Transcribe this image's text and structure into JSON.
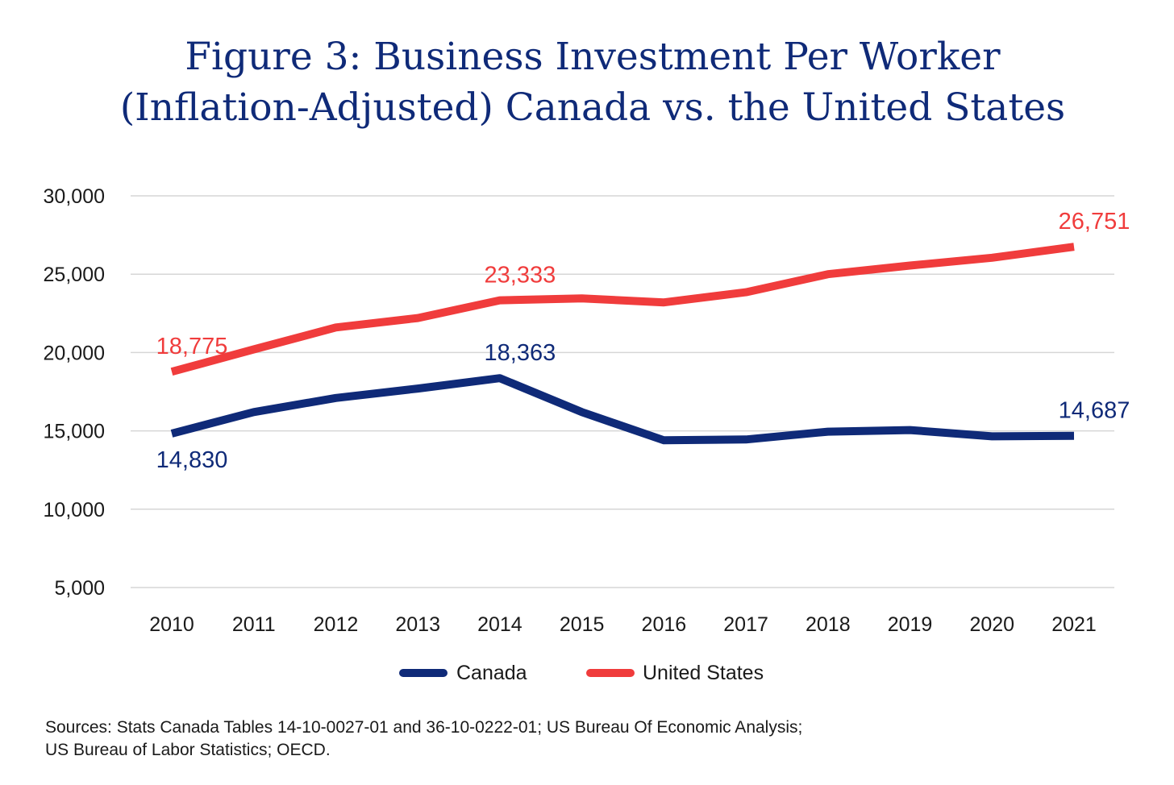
{
  "title_line1": "Figure 3: Business Investment Per Worker",
  "title_line2": "(Inflation-Adjusted) Canada vs. the United States",
  "sources_line1": "Sources: Stats Canada Tables 14-10-0027-01 and 36-10-0222-01; US Bureau Of Economic Analysis;",
  "sources_line2": "US Bureau of Labor Statistics; OECD.",
  "colors": {
    "canada": "#0f2a78",
    "united_states": "#f03c3c",
    "title": "#0f2a78",
    "grid": "#d6d6d6"
  },
  "chart_data": {
    "type": "line",
    "title": "Figure 3: Business Investment Per Worker (Inflation-Adjusted) Canada vs. the United States",
    "xlabel": "",
    "ylabel": "",
    "x": [
      "2010",
      "2011",
      "2012",
      "2013",
      "2014",
      "2015",
      "2016",
      "2017",
      "2018",
      "2019",
      "2020",
      "2021"
    ],
    "ylim": [
      5000,
      30000
    ],
    "yticks": [
      5000,
      10000,
      15000,
      20000,
      25000,
      30000
    ],
    "ytick_labels": [
      "5,000",
      "10,000",
      "15,000",
      "20,000",
      "25,000",
      "30,000"
    ],
    "grid": true,
    "legend_position": "bottom-center",
    "series": [
      {
        "name": "Canada",
        "color": "#0f2a78",
        "values": [
          14830,
          16200,
          17100,
          17700,
          18363,
          16200,
          14400,
          14450,
          14950,
          15050,
          14650,
          14687
        ],
        "labels": [
          {
            "index": 0,
            "text": "14,830",
            "position": "below"
          },
          {
            "index": 4,
            "text": "18,363",
            "position": "above"
          },
          {
            "index": 11,
            "text": "14,687",
            "position": "above"
          }
        ]
      },
      {
        "name": "United States",
        "color": "#f03c3c",
        "values": [
          18775,
          20200,
          21600,
          22200,
          23333,
          23450,
          23200,
          23850,
          25000,
          25550,
          26050,
          26751
        ],
        "labels": [
          {
            "index": 0,
            "text": "18,775",
            "position": "above"
          },
          {
            "index": 4,
            "text": "23,333",
            "position": "above"
          },
          {
            "index": 11,
            "text": "26,751",
            "position": "above"
          }
        ]
      }
    ]
  }
}
